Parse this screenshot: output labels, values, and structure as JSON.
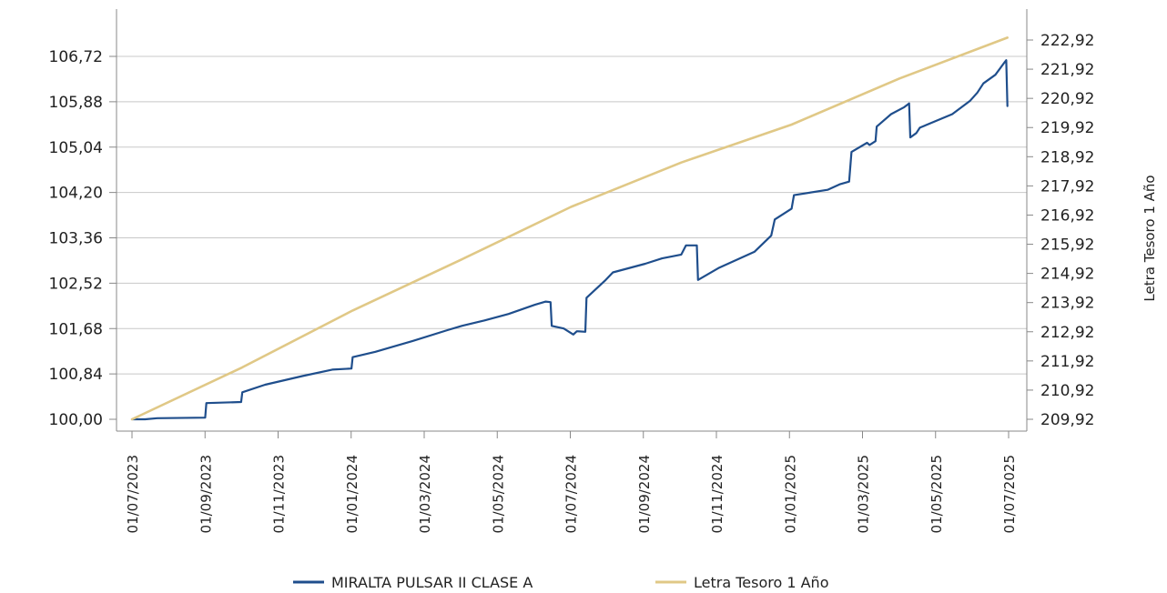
{
  "chart_data": {
    "type": "line",
    "title": "",
    "xlabel": "",
    "ylabel": "",
    "y2label": "Letra Tesoro 1 Año",
    "x_tick_labels": [
      "01/07/2023",
      "01/09/2023",
      "01/11/2023",
      "01/01/2024",
      "01/03/2024",
      "01/05/2024",
      "01/07/2024",
      "01/09/2024",
      "01/11/2024",
      "01/01/2025",
      "01/03/2025",
      "01/05/2025",
      "01/07/2025"
    ],
    "xlim": [
      "2023-07-01",
      "2025-07-01"
    ],
    "y_left_ticks": [
      "100,00",
      "100,84",
      "101,68",
      "102,52",
      "103,36",
      "104,20",
      "105,04",
      "105,88",
      "106,72"
    ],
    "y_left_lim": [
      100.0,
      106.72
    ],
    "y_right_ticks": [
      "209,92",
      "210,92",
      "211,92",
      "212,92",
      "213,92",
      "214,92",
      "215,92",
      "216,92",
      "217,92",
      "218,92",
      "219,92",
      "220,92",
      "221,92",
      "222,92"
    ],
    "y_right_lim": [
      209.92,
      222.92
    ],
    "grid": true,
    "legend_position": "bottom",
    "series": [
      {
        "name": "MIRALTA PULSAR II CLASE A",
        "axis": "left",
        "color": "#1f4e8c",
        "points": [
          [
            "2023-07-01",
            100.0
          ],
          [
            "2023-07-12",
            100.0
          ],
          [
            "2023-07-22",
            100.02
          ],
          [
            "2023-08-31",
            100.03
          ],
          [
            "2023-09-01",
            100.3
          ],
          [
            "2023-09-30",
            100.32
          ],
          [
            "2023-10-01",
            100.5
          ],
          [
            "2023-10-20",
            100.64
          ],
          [
            "2023-11-20",
            100.8
          ],
          [
            "2023-12-15",
            100.92
          ],
          [
            "2023-12-31",
            100.94
          ],
          [
            "2024-01-01",
            101.15
          ],
          [
            "2024-01-20",
            101.25
          ],
          [
            "2024-02-20",
            101.45
          ],
          [
            "2024-03-20",
            101.65
          ],
          [
            "2024-04-01",
            101.73
          ],
          [
            "2024-04-20",
            101.83
          ],
          [
            "2024-05-10",
            101.95
          ],
          [
            "2024-06-01",
            102.12
          ],
          [
            "2024-06-10",
            102.18
          ],
          [
            "2024-06-14",
            102.17
          ],
          [
            "2024-06-15",
            101.73
          ],
          [
            "2024-06-25",
            101.68
          ],
          [
            "2024-07-03",
            101.57
          ],
          [
            "2024-07-06",
            101.63
          ],
          [
            "2024-07-13",
            101.62
          ],
          [
            "2024-07-14",
            102.25
          ],
          [
            "2024-07-30",
            102.58
          ],
          [
            "2024-08-05",
            102.72
          ],
          [
            "2024-09-01",
            102.88
          ],
          [
            "2024-09-15",
            102.98
          ],
          [
            "2024-10-01",
            103.05
          ],
          [
            "2024-10-05",
            103.22
          ],
          [
            "2024-10-14",
            103.22
          ],
          [
            "2024-10-15",
            102.58
          ],
          [
            "2024-11-01",
            102.8
          ],
          [
            "2024-12-01",
            103.1
          ],
          [
            "2024-12-15",
            103.4
          ],
          [
            "2024-12-18",
            103.7
          ],
          [
            "2025-01-01",
            103.9
          ],
          [
            "2025-01-03",
            104.15
          ],
          [
            "2025-01-31",
            104.25
          ],
          [
            "2025-02-10",
            104.35
          ],
          [
            "2025-02-18",
            104.4
          ],
          [
            "2025-02-20",
            104.95
          ],
          [
            "2025-03-05",
            105.12
          ],
          [
            "2025-03-07",
            105.08
          ],
          [
            "2025-03-12",
            105.15
          ],
          [
            "2025-03-13",
            105.42
          ],
          [
            "2025-03-25",
            105.65
          ],
          [
            "2025-04-05",
            105.78
          ],
          [
            "2025-04-09",
            105.85
          ],
          [
            "2025-04-10",
            105.22
          ],
          [
            "2025-04-15",
            105.3
          ],
          [
            "2025-04-18",
            105.4
          ],
          [
            "2025-05-15",
            105.65
          ],
          [
            "2025-05-30",
            105.9
          ],
          [
            "2025-06-05",
            106.05
          ],
          [
            "2025-06-10",
            106.22
          ],
          [
            "2025-06-20",
            106.38
          ],
          [
            "2025-06-28",
            106.62
          ],
          [
            "2025-06-29",
            106.65
          ],
          [
            "2025-06-30",
            105.8
          ]
        ]
      },
      {
        "name": "Letra Tesoro 1 Año",
        "axis": "right",
        "color": "#e0c886",
        "points": [
          [
            "2023-07-01",
            209.92
          ],
          [
            "2023-10-01",
            211.7
          ],
          [
            "2024-01-01",
            213.65
          ],
          [
            "2024-04-01",
            215.4
          ],
          [
            "2024-07-01",
            217.2
          ],
          [
            "2024-10-01",
            218.72
          ],
          [
            "2025-01-01",
            220.02
          ],
          [
            "2025-04-01",
            221.6
          ],
          [
            "2025-06-30",
            223.0
          ]
        ]
      }
    ]
  },
  "legend": {
    "items": [
      {
        "label": "MIRALTA PULSAR II CLASE A",
        "color": "#1f4e8c"
      },
      {
        "label": "Letra Tesoro 1 Año",
        "color": "#e0c886"
      }
    ]
  }
}
